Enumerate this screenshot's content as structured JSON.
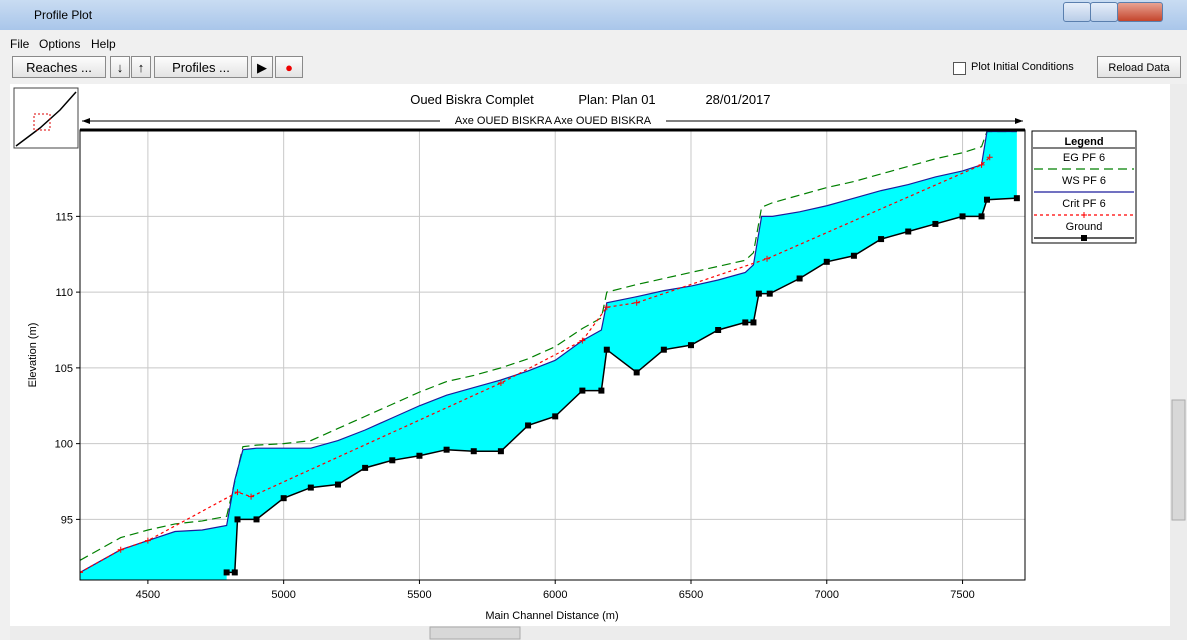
{
  "window": {
    "title": "Profile Plot"
  },
  "menu": [
    "File",
    "Options",
    "Help"
  ],
  "toolbar": {
    "reaches": "Reaches ...",
    "profiles": "Profiles ...",
    "plot_initial": "Plot Initial Conditions",
    "reload": "Reload Data"
  },
  "chart_data": {
    "type": "line",
    "title": "Oued Biskra Complet",
    "plan": "Plan: Plan 01",
    "date": "28/01/2017",
    "reach_label": "Axe OUED BISKRA Axe OUED BISKRA",
    "x_label": "Main Channel Distance (m)",
    "y_label": "Elevation (m)",
    "legend_title": "Legend",
    "xlim": [
      4250,
      7730
    ],
    "xticks": [
      4500,
      5000,
      5500,
      6000,
      6500,
      7000,
      7500
    ],
    "ylim": [
      91,
      120.7
    ],
    "yticks": [
      95,
      100,
      105,
      110,
      115
    ],
    "grid": true,
    "legend": "right",
    "series": [
      {
        "name": "EG  PF 6",
        "color": "#008000",
        "style": "dashed",
        "x": [
          4250,
          4400,
          4500,
          4600,
          4700,
          4790,
          4850,
          4900,
          5000,
          5100,
          5200,
          5300,
          5400,
          5500,
          5600,
          5700,
          5800,
          5900,
          6000,
          6100,
          6170,
          6190,
          6300,
          6400,
          6500,
          6600,
          6700,
          6730,
          6760,
          6800,
          6900,
          7000,
          7100,
          7200,
          7300,
          7400,
          7500,
          7570,
          7590,
          7700
        ],
        "values": [
          92.3,
          93.8,
          94.3,
          94.7,
          94.9,
          95.2,
          99.8,
          99.9,
          100.0,
          100.2,
          101.0,
          101.8,
          102.6,
          103.4,
          104.1,
          104.5,
          105.0,
          105.6,
          106.4,
          107.6,
          108.3,
          110.0,
          110.5,
          110.9,
          111.3,
          111.7,
          112.1,
          112.6,
          115.6,
          115.9,
          116.4,
          116.9,
          117.3,
          117.8,
          118.3,
          118.8,
          119.2,
          119.6,
          120.6,
          120.6
        ]
      },
      {
        "name": "WS  PF 6",
        "color": "#1c1c9c",
        "style": "solid",
        "x": [
          4250,
          4400,
          4500,
          4600,
          4700,
          4790,
          4820,
          4850,
          4900,
          5000,
          5100,
          5200,
          5300,
          5400,
          5500,
          5600,
          5700,
          5800,
          5900,
          6000,
          6100,
          6170,
          6190,
          6300,
          6400,
          6500,
          6600,
          6700,
          6730,
          6760,
          6800,
          6900,
          7000,
          7100,
          7200,
          7300,
          7400,
          7500,
          7570,
          7590,
          7700
        ],
        "values": [
          91.5,
          93.0,
          93.6,
          94.2,
          94.3,
          94.6,
          97.6,
          99.6,
          99.7,
          99.7,
          99.7,
          100.2,
          100.9,
          101.7,
          102.5,
          103.2,
          103.7,
          104.2,
          104.8,
          105.5,
          106.8,
          107.5,
          109.3,
          109.7,
          110.1,
          110.4,
          110.8,
          111.3,
          111.8,
          115.0,
          115.0,
          115.3,
          115.7,
          116.2,
          116.7,
          117.1,
          117.6,
          118.0,
          118.4,
          120.6,
          120.6
        ]
      },
      {
        "name": "Crit  PF 6",
        "color": "#ff0000",
        "style": "dotted",
        "x": [
          4250,
          4400,
          4500,
          4830,
          4880,
          5800,
          6100,
          6190,
          6300,
          6780,
          7570,
          7600
        ],
        "values": [
          91.5,
          93.0,
          93.6,
          96.8,
          96.5,
          104.0,
          106.8,
          109.0,
          109.3,
          112.2,
          118.4,
          118.9
        ]
      },
      {
        "name": "Ground",
        "color": "#000000",
        "style": "solid",
        "x": [
          4790,
          4820,
          4830,
          4900,
          5000,
          5100,
          5200,
          5300,
          5400,
          5500,
          5600,
          5700,
          5800,
          5900,
          6000,
          6100,
          6170,
          6190,
          6300,
          6400,
          6500,
          6600,
          6700,
          6730,
          6750,
          6790,
          6900,
          7000,
          7100,
          7200,
          7300,
          7400,
          7500,
          7570,
          7590,
          7700
        ],
        "values": [
          91.5,
          91.5,
          95.0,
          95.0,
          96.4,
          97.1,
          97.3,
          98.4,
          98.9,
          99.2,
          99.6,
          99.5,
          99.5,
          101.2,
          101.8,
          103.5,
          103.5,
          106.2,
          104.7,
          106.2,
          106.5,
          107.5,
          108.0,
          108.0,
          109.9,
          109.9,
          110.9,
          112.0,
          112.4,
          113.5,
          114.0,
          114.5,
          115.0,
          115.0,
          116.1,
          116.2
        ]
      }
    ]
  }
}
